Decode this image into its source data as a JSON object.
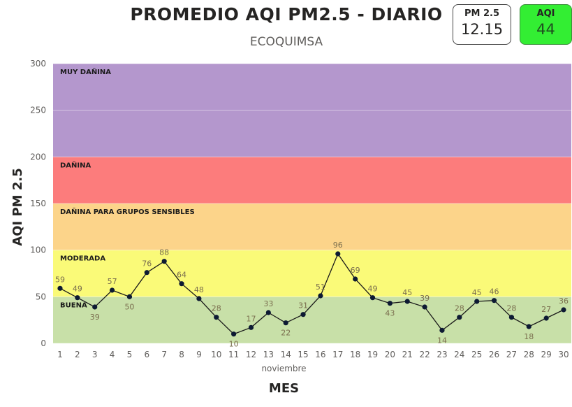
{
  "header": {
    "title": "PROMEDIO AQI PM2.5 - DIARIO",
    "subtitle": "ECOQUIMSA"
  },
  "cards": {
    "pm25": {
      "label": "PM 2.5",
      "value": "12.15"
    },
    "aqi": {
      "label": "AQI",
      "value": "44",
      "color": "#33ee33"
    }
  },
  "chart_data": {
    "type": "line",
    "title": "PROMEDIO AQI PM2.5 - DIARIO",
    "subtitle": "ECOQUIMSA",
    "xlabel": "MES",
    "ylabel": "AQI PM 2.5",
    "month_label": "noviembre",
    "ylim": [
      0,
      300
    ],
    "yticks": [
      0,
      50,
      100,
      150,
      200,
      250,
      300
    ],
    "x": [
      1,
      2,
      3,
      4,
      5,
      6,
      7,
      8,
      9,
      10,
      11,
      12,
      13,
      14,
      15,
      16,
      17,
      18,
      19,
      20,
      21,
      22,
      23,
      24,
      25,
      26,
      27,
      28,
      29,
      30
    ],
    "values": [
      59,
      49,
      39,
      57,
      50,
      76,
      88,
      64,
      48,
      28,
      10,
      17,
      33,
      22,
      31,
      51,
      96,
      69,
      49,
      43,
      45,
      39,
      14,
      28,
      45,
      46,
      28,
      18,
      27,
      36
    ],
    "bands": [
      {
        "label": "BUENA",
        "from": 0,
        "to": 50,
        "color": "#c8e0a8"
      },
      {
        "label": "MODERADA",
        "from": 50,
        "to": 100,
        "color": "#fafa78"
      },
      {
        "label": "DAÑINA PARA GRUPOS SENSIBLES",
        "from": 100,
        "to": 150,
        "color": "#fcd48a"
      },
      {
        "label": "DAÑINA",
        "from": 150,
        "to": 200,
        "color": "#fc7c7c"
      },
      {
        "label": "MUY DAÑINA",
        "from": 200,
        "to": 300,
        "color": "#b497cd"
      }
    ],
    "line_color": "#1a1a1a"
  }
}
